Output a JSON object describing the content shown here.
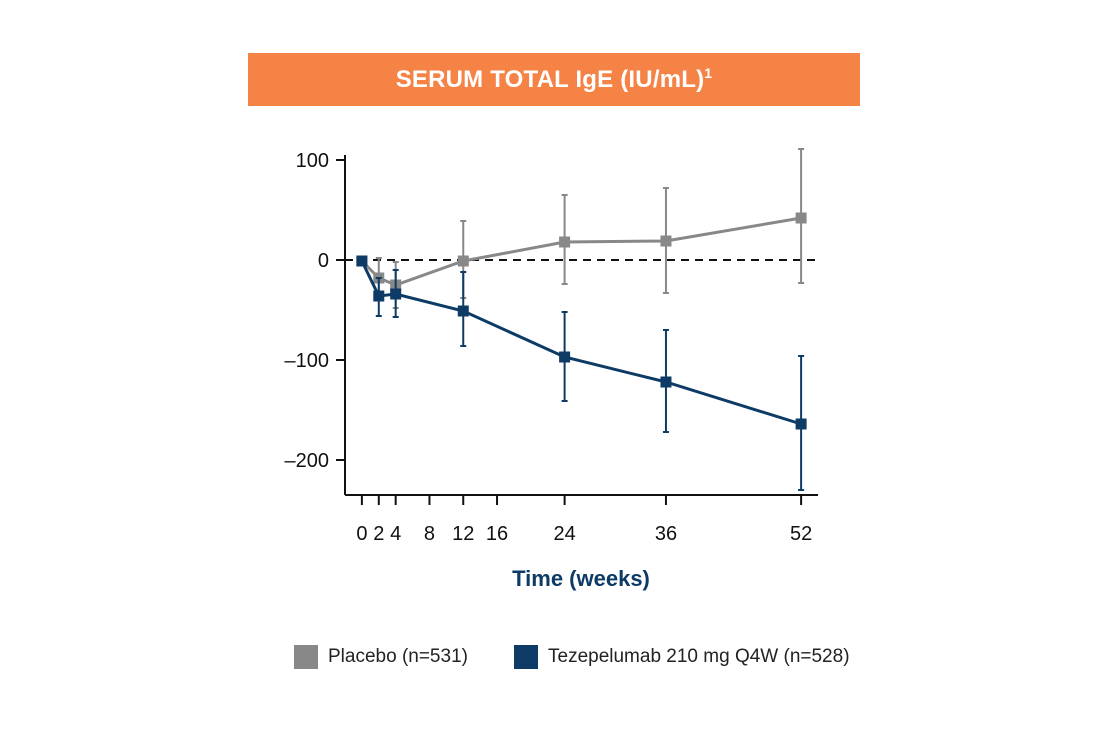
{
  "title": {
    "main": "SERUM TOTAL IgE (IU/mL)",
    "superscript": "1"
  },
  "colors": {
    "title_bar": "#f58345",
    "placebo": "#888888",
    "tezepelumab": "#0d3b66",
    "axis_label": "#0d3b66"
  },
  "chart_data": {
    "type": "line",
    "title": "SERUM TOTAL IgE (IU/mL)",
    "xlabel": "Time (weeks)",
    "ylabel": "",
    "x_ticks": [
      0,
      2,
      4,
      8,
      12,
      16,
      24,
      36,
      52
    ],
    "y_ticks": [
      100,
      0,
      -100,
      -200
    ],
    "y_tick_labels": [
      "100",
      "0",
      "–100",
      "–200"
    ],
    "xlim": [
      -2,
      54
    ],
    "ylim": [
      -235,
      130
    ],
    "reference_line": {
      "y": 0,
      "style": "dashed"
    },
    "series": [
      {
        "name": "Placebo (n=531)",
        "color": "#888888",
        "x": [
          0,
          2,
          4,
          12,
          24,
          36,
          52
        ],
        "y": [
          -1,
          -18,
          -25,
          -1,
          18,
          19,
          42
        ],
        "err_low": [
          -1,
          -38,
          -48,
          -38,
          -24,
          -33,
          -23
        ],
        "err_high": [
          -1,
          2,
          -2,
          39,
          65,
          72,
          111
        ]
      },
      {
        "name": "Tezepelumab 210 mg Q4W (n=528)",
        "color": "#0d3b66",
        "x": [
          0,
          2,
          4,
          12,
          24,
          36,
          52
        ],
        "y": [
          -1,
          -36,
          -34,
          -51,
          -97,
          -122,
          -164
        ],
        "err_low": [
          -1,
          -56,
          -57,
          -86,
          -141,
          -172,
          -230
        ],
        "err_high": [
          -1,
          -18,
          -10,
          -12,
          -52,
          -70,
          -96
        ]
      }
    ],
    "legend_position": "bottom"
  }
}
